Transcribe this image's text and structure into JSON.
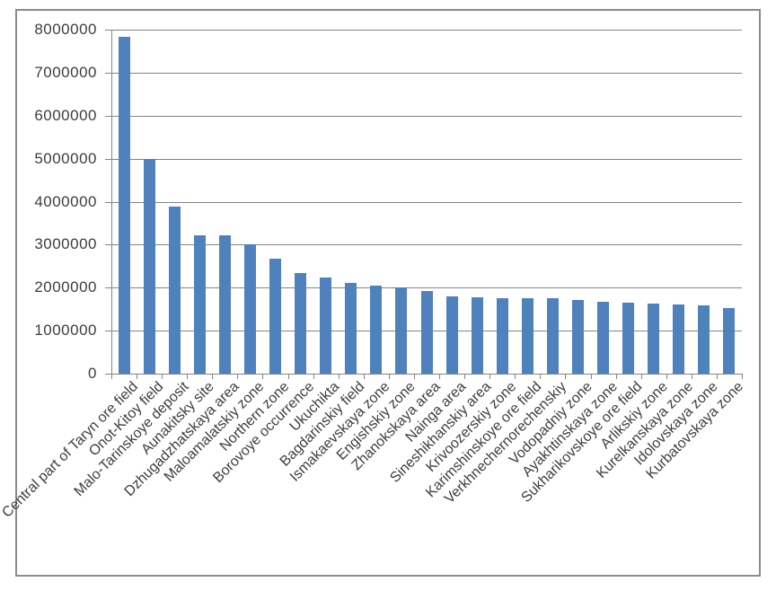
{
  "chart_data": {
    "type": "bar",
    "title": "",
    "xlabel": "",
    "ylabel": "",
    "categories": [
      "Central part of Taryn ore field",
      "Onot-Kitoy field",
      "Malo-Tarinskoye deposit",
      "Aunakitsky site",
      "Dzhugadzhatskaya area",
      "Maloamalatskiy zone",
      "Northern zone",
      "Borovoye occurrence",
      "Ukuchikta",
      "Bagdarinskiy field",
      "Ismakaevskaya zone",
      "Engishskiy zone",
      "Zhanokskaya area",
      "Nainga area",
      "Sineshikhanskiy area",
      "Krivoozerskiy zone",
      "Karimshinskoye ore field",
      "Verkhnechernorechenskiy",
      "Vodopadniy zone",
      "Ayakhtinskaya zone",
      "Sukharikovskoye ore field",
      "Arlikskiy zone",
      "Kurelkanskaya zone",
      "Idolovskaya zone",
      "Kurbatovskaya zone"
    ],
    "values": [
      7840000,
      5000000,
      3890000,
      3210000,
      3210000,
      3000000,
      2670000,
      2330000,
      2230000,
      2100000,
      2040000,
      2000000,
      1920000,
      1790000,
      1780000,
      1760000,
      1750000,
      1750000,
      1720000,
      1670000,
      1650000,
      1620000,
      1610000,
      1590000,
      1520000
    ],
    "ylim": [
      0,
      8000000
    ],
    "ytick_step": 1000000,
    "ytick_labels": [
      "0",
      "1000000",
      "2000000",
      "3000000",
      "4000000",
      "5000000",
      "6000000",
      "7000000",
      "8000000"
    ],
    "grid": true,
    "legend_position": "none",
    "bar_color": "#4f81bd",
    "gridline_color": "#848484",
    "axis_color": "#848484",
    "text_color": "#3d3d3d",
    "frame_border_color": "#8a8a8a",
    "background_color": "#ffffff"
  }
}
